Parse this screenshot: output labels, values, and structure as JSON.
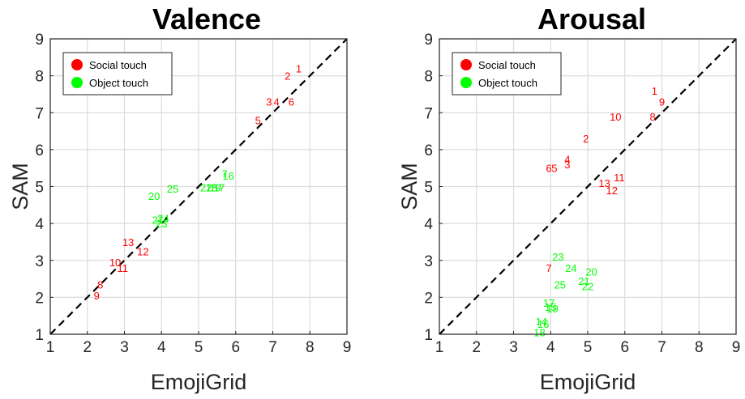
{
  "chart_data": [
    {
      "type": "scatter",
      "title": "Valence",
      "xlabel": "EmojiGrid",
      "ylabel": "SAM",
      "xlim": [
        1,
        9
      ],
      "ylim": [
        1,
        9
      ],
      "ticks": [
        "1",
        "2",
        "3",
        "4",
        "5",
        "6",
        "7",
        "8",
        "9"
      ],
      "grid": true,
      "legend_position": "top-left",
      "diagonal": "dashed identity line",
      "series": [
        {
          "name": "Social touch",
          "color": "#ff0000",
          "points": [
            {
              "label": "1",
              "x": 7.7,
              "y": 8.2
            },
            {
              "label": "2",
              "x": 7.4,
              "y": 8.0
            },
            {
              "label": "3",
              "x": 6.9,
              "y": 7.3
            },
            {
              "label": "4",
              "x": 7.1,
              "y": 7.3
            },
            {
              "label": "5",
              "x": 6.6,
              "y": 6.8
            },
            {
              "label": "6",
              "x": 7.5,
              "y": 7.3
            },
            {
              "label": "8",
              "x": 2.35,
              "y": 2.35
            },
            {
              "label": "9",
              "x": 2.25,
              "y": 2.05
            },
            {
              "label": "10",
              "x": 2.75,
              "y": 2.95
            },
            {
              "label": "11",
              "x": 2.95,
              "y": 2.8
            },
            {
              "label": "12",
              "x": 3.5,
              "y": 3.25
            },
            {
              "label": "13",
              "x": 3.1,
              "y": 3.5
            }
          ]
        },
        {
          "name": "Object touch",
          "color": "#00ff00",
          "points": [
            {
              "label": "7",
              "x": 5.7,
              "y": 5.35
            },
            {
              "label": "16",
              "x": 5.8,
              "y": 5.3
            },
            {
              "label": "20",
              "x": 3.8,
              "y": 4.75
            },
            {
              "label": "25",
              "x": 4.3,
              "y": 4.95
            },
            {
              "label": "21",
              "x": 3.9,
              "y": 4.1
            },
            {
              "label": "24",
              "x": 4.05,
              "y": 4.15
            },
            {
              "label": "23",
              "x": 4.0,
              "y": 4.0
            },
            {
              "label": "22",
              "x": 5.2,
              "y": 4.98
            },
            {
              "label": "18",
              "x": 5.35,
              "y": 4.98
            },
            {
              "label": "19",
              "x": 5.45,
              "y": 4.98
            },
            {
              "label": "17",
              "x": 5.55,
              "y": 4.98
            }
          ]
        }
      ]
    },
    {
      "type": "scatter",
      "title": "Arousal",
      "xlabel": "EmojiGrid",
      "ylabel": "SAM",
      "xlim": [
        1,
        9
      ],
      "ylim": [
        1,
        9
      ],
      "ticks": [
        "1",
        "2",
        "3",
        "4",
        "5",
        "6",
        "7",
        "8",
        "9"
      ],
      "grid": true,
      "legend_position": "top-left",
      "diagonal": "dashed identity line",
      "series": [
        {
          "name": "Social touch",
          "color": "#ff0000",
          "points": [
            {
              "label": "1",
              "x": 6.8,
              "y": 7.6
            },
            {
              "label": "9",
              "x": 7.0,
              "y": 7.3
            },
            {
              "label": "10",
              "x": 5.75,
              "y": 6.9
            },
            {
              "label": "8",
              "x": 6.75,
              "y": 6.9
            },
            {
              "label": "2",
              "x": 4.95,
              "y": 6.3
            },
            {
              "label": "4",
              "x": 4.45,
              "y": 5.75
            },
            {
              "label": "3",
              "x": 4.45,
              "y": 5.6
            },
            {
              "label": "6",
              "x": 3.95,
              "y": 5.5
            },
            {
              "label": "5",
              "x": 4.1,
              "y": 5.5
            },
            {
              "label": "11",
              "x": 5.85,
              "y": 5.25
            },
            {
              "label": "13",
              "x": 5.45,
              "y": 5.1
            },
            {
              "label": "12",
              "x": 5.65,
              "y": 4.9
            },
            {
              "label": "7",
              "x": 3.95,
              "y": 2.8
            }
          ]
        },
        {
          "name": "Object touch",
          "color": "#00ff00",
          "points": [
            {
              "label": "23",
              "x": 4.2,
              "y": 3.1
            },
            {
              "label": "24",
              "x": 4.55,
              "y": 2.8
            },
            {
              "label": "20",
              "x": 5.1,
              "y": 2.7
            },
            {
              "label": "21",
              "x": 4.9,
              "y": 2.45
            },
            {
              "label": "25",
              "x": 4.25,
              "y": 2.35
            },
            {
              "label": "22",
              "x": 5.0,
              "y": 2.3
            },
            {
              "label": "17",
              "x": 3.95,
              "y": 1.85
            },
            {
              "label": "15",
              "x": 4.0,
              "y": 1.75
            },
            {
              "label": "19",
              "x": 4.05,
              "y": 1.7
            },
            {
              "label": "14",
              "x": 3.75,
              "y": 1.35
            },
            {
              "label": "16",
              "x": 3.8,
              "y": 1.28
            },
            {
              "label": "18",
              "x": 3.7,
              "y": 1.05
            }
          ]
        }
      ]
    }
  ]
}
